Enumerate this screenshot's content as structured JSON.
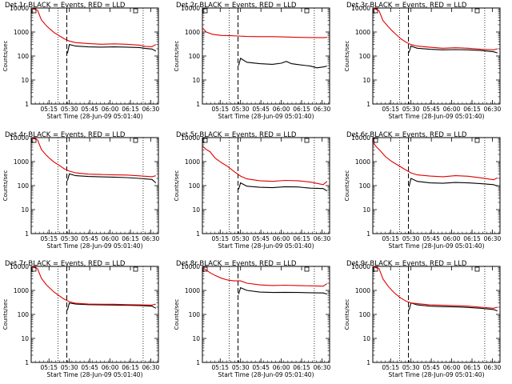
{
  "chart_data": [
    {
      "type": "line",
      "title": "Det 1r BLACK = Events, RED = LLD",
      "xlabel": "Start Time (28-Jun-09 05:01:40)",
      "ylabel": "Counts/sec",
      "yscale": "log",
      "ylim": [
        1,
        10000
      ],
      "xlim": [
        0,
        100
      ],
      "yticks": [
        "1",
        "10",
        "100",
        "1000",
        "10000"
      ],
      "xticks": [
        {
          "x": 14,
          "label": "05:15"
        },
        {
          "x": 30,
          "label": "05:30"
        },
        {
          "x": 46,
          "label": "05:45"
        },
        {
          "x": 62,
          "label": "06:00"
        },
        {
          "x": 78,
          "label": "06:15"
        },
        {
          "x": 94,
          "label": "06:30"
        }
      ],
      "markers": {
        "dotted": [
          21,
          88
        ],
        "dashed": [
          28
        ]
      },
      "legend_box": "top-left and top-right corner squares",
      "series": [
        {
          "color": "#000000",
          "x": [
            28.5,
            30,
            35,
            45,
            55,
            65,
            75,
            85,
            90,
            95,
            98
          ],
          "y": [
            130,
            300,
            260,
            240,
            235,
            240,
            235,
            225,
            205,
            195,
            160
          ]
        },
        {
          "color": "#e00000",
          "x": [
            0,
            2,
            5,
            8,
            12,
            15,
            18,
            22,
            26,
            30,
            35,
            45,
            55,
            65,
            75,
            85,
            90,
            95,
            98
          ],
          "y": [
            10000,
            9000,
            8000,
            3200,
            1800,
            1300,
            950,
            700,
            520,
            420,
            360,
            330,
            310,
            320,
            310,
            285,
            250,
            245,
            300
          ]
        }
      ]
    },
    {
      "type": "line",
      "title": "Det 2r BLACK = Events, RED = LLD",
      "xlabel": "Start Time (28-Jun-09 05:01:40)",
      "ylabel": "Counts/sec",
      "yscale": "log",
      "ylim": [
        1,
        10000
      ],
      "xlim": [
        0,
        100
      ],
      "yticks": [
        "1",
        "10",
        "100",
        "1000",
        "10000"
      ],
      "xticks": [
        {
          "x": 14,
          "label": "05:15"
        },
        {
          "x": 30,
          "label": "05:30"
        },
        {
          "x": 46,
          "label": "05:45"
        },
        {
          "x": 62,
          "label": "06:00"
        },
        {
          "x": 78,
          "label": "06:15"
        },
        {
          "x": 94,
          "label": "06:30"
        }
      ],
      "markers": {
        "dotted": [
          21,
          88
        ],
        "dashed": [
          28
        ]
      },
      "legend_box": "top-left and top-right corner squares",
      "series": [
        {
          "color": "#000000",
          "x": [
            28.5,
            30,
            35,
            45,
            55,
            62,
            66,
            70,
            75,
            85,
            90,
            95,
            98
          ],
          "y": [
            40,
            80,
            55,
            48,
            45,
            50,
            60,
            48,
            44,
            38,
            32,
            35,
            38
          ]
        },
        {
          "color": "#e00000",
          "x": [
            0,
            3,
            8,
            15,
            22,
            28,
            35,
            45,
            55,
            65,
            75,
            85,
            95,
            98
          ],
          "y": [
            1500,
            1000,
            800,
            720,
            700,
            680,
            650,
            640,
            640,
            620,
            600,
            590,
            580,
            600
          ]
        }
      ]
    },
    {
      "type": "line",
      "title": "Det 3r BLACK = Events, RED = LLD",
      "xlabel": "Start Time (28-Jun-09 05:01:40)",
      "ylabel": "Counts/sec",
      "yscale": "log",
      "ylim": [
        1,
        10000
      ],
      "xlim": [
        0,
        100
      ],
      "yticks": [
        "1",
        "10",
        "100",
        "1000",
        "10000"
      ],
      "xticks": [
        {
          "x": 14,
          "label": "05:15"
        },
        {
          "x": 30,
          "label": "05:30"
        },
        {
          "x": 46,
          "label": "05:45"
        },
        {
          "x": 62,
          "label": "06:00"
        },
        {
          "x": 78,
          "label": "06:15"
        },
        {
          "x": 94,
          "label": "06:30"
        }
      ],
      "markers": {
        "dotted": [
          21,
          88
        ],
        "dashed": [
          28
        ]
      },
      "legend_box": "top-left and top-right corner squares",
      "series": [
        {
          "color": "#000000",
          "x": [
            28.5,
            30,
            35,
            45,
            55,
            65,
            75,
            85,
            95,
            98
          ],
          "y": [
            140,
            260,
            210,
            190,
            180,
            185,
            180,
            170,
            150,
            135
          ]
        },
        {
          "color": "#e00000",
          "x": [
            0,
            2,
            5,
            8,
            12,
            15,
            18,
            22,
            26,
            30,
            35,
            45,
            55,
            65,
            75,
            85,
            95,
            98
          ],
          "y": [
            10000,
            9000,
            7500,
            3000,
            1700,
            1150,
            820,
            520,
            380,
            300,
            260,
            230,
            210,
            220,
            210,
            190,
            180,
            200
          ]
        }
      ]
    },
    {
      "type": "line",
      "title": "Det 4r BLACK = Events, RED = LLD",
      "xlabel": "Start Time (28-Jun-09 05:01:40)",
      "ylabel": "Counts/sec",
      "yscale": "log",
      "ylim": [
        1,
        10000
      ],
      "xlim": [
        0,
        100
      ],
      "yticks": [
        "1",
        "10",
        "100",
        "1000",
        "10000"
      ],
      "xticks": [
        {
          "x": 14,
          "label": "05:15"
        },
        {
          "x": 30,
          "label": "05:30"
        },
        {
          "x": 46,
          "label": "05:45"
        },
        {
          "x": 62,
          "label": "06:00"
        },
        {
          "x": 78,
          "label": "06:15"
        },
        {
          "x": 94,
          "label": "06:30"
        }
      ],
      "markers": {
        "dotted": [
          21,
          88
        ],
        "dashed": [
          28
        ]
      },
      "legend_box": "top-left and top-right corner squares",
      "series": [
        {
          "color": "#000000",
          "x": [
            28.5,
            30,
            35,
            45,
            55,
            65,
            75,
            85,
            95,
            98
          ],
          "y": [
            160,
            310,
            260,
            240,
            230,
            225,
            215,
            200,
            180,
            130
          ]
        },
        {
          "color": "#e00000",
          "x": [
            0,
            2,
            5,
            8,
            12,
            15,
            18,
            22,
            26,
            30,
            35,
            45,
            55,
            65,
            75,
            85,
            95,
            98
          ],
          "y": [
            10000,
            9000,
            8000,
            3200,
            1800,
            1300,
            950,
            700,
            500,
            400,
            340,
            300,
            290,
            280,
            275,
            255,
            235,
            260
          ]
        }
      ]
    },
    {
      "type": "line",
      "title": "Det 5r BLACK = Events, RED = LLD",
      "xlabel": "Start Time (28-Jun-09 05:01:40)",
      "ylabel": "Counts/sec",
      "yscale": "log",
      "ylim": [
        1,
        10000
      ],
      "xlim": [
        0,
        100
      ],
      "yticks": [
        "1",
        "10",
        "100",
        "1000",
        "10000"
      ],
      "xticks": [
        {
          "x": 14,
          "label": "05:15"
        },
        {
          "x": 30,
          "label": "05:30"
        },
        {
          "x": 46,
          "label": "05:45"
        },
        {
          "x": 62,
          "label": "06:00"
        },
        {
          "x": 78,
          "label": "06:15"
        },
        {
          "x": 94,
          "label": "06:30"
        }
      ],
      "markers": {
        "dotted": [
          21,
          88
        ],
        "dashed": [
          28
        ]
      },
      "legend_box": "top-left and top-right corner squares",
      "series": [
        {
          "color": "#000000",
          "x": [
            28.5,
            30,
            35,
            45,
            55,
            65,
            75,
            85,
            95,
            98
          ],
          "y": [
            70,
            130,
            95,
            85,
            82,
            90,
            88,
            78,
            75,
            60
          ]
        },
        {
          "color": "#e00000",
          "x": [
            0,
            3,
            6,
            10,
            15,
            20,
            25,
            30,
            35,
            45,
            55,
            65,
            75,
            85,
            95,
            98
          ],
          "y": [
            4500,
            3200,
            2600,
            1400,
            900,
            620,
            380,
            250,
            190,
            160,
            150,
            165,
            160,
            140,
            110,
            150
          ]
        }
      ]
    },
    {
      "type": "line",
      "title": "Det 6r BLACK = Events, RED = LLD",
      "xlabel": "Start Time (28-Jun-09 05:01:40)",
      "ylabel": "Counts/sec",
      "yscale": "log",
      "ylim": [
        1,
        10000
      ],
      "xlim": [
        0,
        100
      ],
      "yticks": [
        "1",
        "10",
        "100",
        "1000",
        "10000"
      ],
      "xticks": [
        {
          "x": 14,
          "label": "05:15"
        },
        {
          "x": 30,
          "label": "05:30"
        },
        {
          "x": 46,
          "label": "05:45"
        },
        {
          "x": 62,
          "label": "06:00"
        },
        {
          "x": 78,
          "label": "06:15"
        },
        {
          "x": 94,
          "label": "06:30"
        }
      ],
      "markers": {
        "dotted": [
          21,
          88
        ],
        "dashed": [
          28
        ]
      },
      "legend_box": "top-left and top-right corner squares",
      "series": [
        {
          "color": "#000000",
          "x": [
            28.5,
            30,
            35,
            45,
            55,
            65,
            75,
            85,
            95,
            98
          ],
          "y": [
            90,
            200,
            150,
            130,
            125,
            135,
            130,
            120,
            110,
            95
          ]
        },
        {
          "color": "#e00000",
          "x": [
            0,
            3,
            6,
            10,
            15,
            20,
            25,
            30,
            35,
            45,
            55,
            65,
            75,
            85,
            95,
            98
          ],
          "y": [
            6500,
            4000,
            2800,
            1600,
            1000,
            700,
            480,
            340,
            280,
            250,
            235,
            260,
            245,
            210,
            175,
            210
          ]
        }
      ]
    },
    {
      "type": "line",
      "title": "Det 7r BLACK = Events, RED = LLD",
      "xlabel": "Start Time (28-Jun-09 05:01:40)",
      "ylabel": "Counts/sec",
      "yscale": "log",
      "ylim": [
        1,
        10000
      ],
      "xlim": [
        0,
        100
      ],
      "yticks": [
        "1",
        "10",
        "100",
        "1000",
        "10000"
      ],
      "xticks": [
        {
          "x": 14,
          "label": "05:15"
        },
        {
          "x": 30,
          "label": "05:30"
        },
        {
          "x": 46,
          "label": "05:45"
        },
        {
          "x": 62,
          "label": "06:00"
        },
        {
          "x": 78,
          "label": "06:15"
        },
        {
          "x": 94,
          "label": "06:30"
        }
      ],
      "markers": {
        "dotted": [
          21,
          88
        ],
        "dashed": [
          28
        ]
      },
      "legend_box": "top-left and top-right corner squares",
      "series": [
        {
          "color": "#000000",
          "x": [
            28.5,
            30,
            35,
            45,
            55,
            65,
            75,
            85,
            95,
            98
          ],
          "y": [
            150,
            300,
            270,
            255,
            250,
            245,
            240,
            235,
            220,
            180
          ]
        },
        {
          "color": "#e00000",
          "x": [
            0,
            2,
            5,
            8,
            12,
            15,
            18,
            22,
            26,
            30,
            35,
            45,
            55,
            65,
            75,
            85,
            95,
            98
          ],
          "y": [
            10000,
            9000,
            8000,
            3200,
            1700,
            1200,
            850,
            600,
            430,
            340,
            290,
            270,
            265,
            265,
            255,
            250,
            245,
            270
          ]
        }
      ]
    },
    {
      "type": "line",
      "title": "Det 8r BLACK = Events, RED = LLD",
      "xlabel": "Start Time (28-Jun-09 05:01:40)",
      "ylabel": "Counts/sec",
      "yscale": "log",
      "ylim": [
        1,
        10000
      ],
      "xlim": [
        0,
        100
      ],
      "yticks": [
        "1",
        "10",
        "100",
        "1000",
        "10000"
      ],
      "xticks": [
        {
          "x": 14,
          "label": "05:15"
        },
        {
          "x": 30,
          "label": "05:30"
        },
        {
          "x": 46,
          "label": "05:45"
        },
        {
          "x": 62,
          "label": "06:00"
        },
        {
          "x": 78,
          "label": "06:15"
        },
        {
          "x": 94,
          "label": "06:30"
        }
      ],
      "markers": {
        "dotted": [
          21,
          88
        ],
        "dashed": [
          28
        ]
      },
      "legend_box": "top-left and top-right corner squares",
      "series": [
        {
          "color": "#000000",
          "x": [
            28.5,
            30,
            35,
            45,
            55,
            65,
            75,
            85,
            95,
            98
          ],
          "y": [
            700,
            1300,
            1000,
            850,
            820,
            830,
            820,
            800,
            780,
            700
          ]
        },
        {
          "color": "#e00000",
          "x": [
            0,
            3,
            6,
            10,
            15,
            20,
            25,
            30,
            35,
            45,
            55,
            65,
            75,
            85,
            95,
            98
          ],
          "y": [
            9000,
            7000,
            5500,
            4200,
            3200,
            2700,
            2500,
            2500,
            2000,
            1700,
            1600,
            1650,
            1600,
            1550,
            1500,
            1900
          ]
        }
      ]
    },
    {
      "type": "line",
      "title": "Det 9r BLACK = Events, RED = LLD",
      "xlabel": "Start Time (28-Jun-09 05:01:40)",
      "ylabel": "Counts/sec",
      "yscale": "log",
      "ylim": [
        1,
        10000
      ],
      "xlim": [
        0,
        100
      ],
      "yticks": [
        "1",
        "10",
        "100",
        "1000",
        "10000"
      ],
      "xticks": [
        {
          "x": 14,
          "label": "05:15"
        },
        {
          "x": 30,
          "label": "05:30"
        },
        {
          "x": 46,
          "label": "05:45"
        },
        {
          "x": 62,
          "label": "06:00"
        },
        {
          "x": 78,
          "label": "06:15"
        },
        {
          "x": 94,
          "label": "06:30"
        }
      ],
      "markers": {
        "dotted": [
          21,
          88
        ],
        "dashed": [
          28
        ]
      },
      "legend_box": "top-left and top-right corner squares",
      "series": [
        {
          "color": "#000000",
          "x": [
            28.5,
            30,
            35,
            45,
            55,
            65,
            75,
            85,
            95,
            98
          ],
          "y": [
            150,
            300,
            250,
            220,
            210,
            205,
            195,
            180,
            160,
            140
          ]
        },
        {
          "color": "#e00000",
          "x": [
            0,
            2,
            5,
            8,
            12,
            15,
            18,
            22,
            26,
            30,
            35,
            45,
            55,
            65,
            75,
            85,
            95,
            98
          ],
          "y": [
            10000,
            9000,
            8000,
            3000,
            1500,
            1000,
            700,
            480,
            360,
            300,
            280,
            250,
            240,
            230,
            220,
            200,
            180,
            200
          ]
        }
      ]
    }
  ]
}
